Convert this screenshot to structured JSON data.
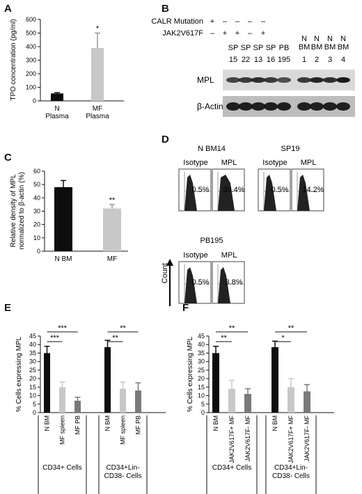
{
  "panels": {
    "A": "A",
    "B": "B",
    "C": "C",
    "D": "D",
    "E": "E",
    "F": "F"
  },
  "colors": {
    "black": "#0d0d0d",
    "light_gray": "#c8c8c8",
    "mid_gray": "#7a7a7a"
  },
  "chart_data": [
    {
      "id": "A",
      "type": "bar",
      "ylabel": "TPO concentration (pg/ml)",
      "ylim": [
        0,
        600
      ],
      "yticks": [
        "0",
        "100",
        "200",
        "300",
        "400",
        "500",
        "600"
      ],
      "categories": [
        "N\nPlasma",
        "MF\nPlasma"
      ],
      "category_lines": [
        [
          "N",
          "Plasma"
        ],
        [
          "MF",
          "Plasma"
        ]
      ],
      "values": [
        55,
        390
      ],
      "errors": [
        6,
        110
      ],
      "sig": [
        "",
        "*"
      ]
    },
    {
      "id": "C",
      "type": "bar",
      "ylabel_lines": [
        "Relative density of MPL",
        "normalized to β-actin (%)"
      ],
      "ylim": [
        0,
        60
      ],
      "yticks": [
        "0",
        "10",
        "20",
        "30",
        "40",
        "50",
        "60"
      ],
      "categories": [
        "N BM",
        "MF"
      ],
      "values": [
        48,
        32
      ],
      "errors": [
        5,
        3
      ],
      "sig": [
        "",
        "**"
      ]
    },
    {
      "id": "E",
      "type": "bar",
      "ylabel": "% Cells expressing MPL",
      "ylim": [
        0,
        45
      ],
      "yticks": [
        "0",
        "5",
        "10",
        "15",
        "20",
        "25",
        "30",
        "35",
        "40",
        "45"
      ],
      "groups": [
        {
          "label_lines": [
            "CD34+ Cells"
          ],
          "categories": [
            "N BM",
            "MF spleen",
            "MF PB"
          ],
          "values": [
            35,
            15,
            7
          ],
          "errors": [
            4,
            3,
            2
          ]
        },
        {
          "label_lines": [
            "CD34+Lin-",
            "CD38- Cells"
          ],
          "categories": [
            "N BM",
            "MF spleen",
            "MF PB"
          ],
          "values": [
            38.5,
            14,
            13
          ],
          "errors": [
            4,
            4,
            4.5
          ]
        }
      ],
      "sig_brackets": [
        {
          "group": 0,
          "from": 0,
          "to": 2,
          "label": "***"
        },
        {
          "group": 0,
          "from": 0,
          "to": 1,
          "label": "***"
        },
        {
          "group": 1,
          "from": 0,
          "to": 2,
          "label": "**"
        },
        {
          "group": 1,
          "from": 0,
          "to": 1,
          "label": "**"
        }
      ]
    },
    {
      "id": "F",
      "type": "bar",
      "ylabel": "% Cells expressing MPL",
      "ylim": [
        0,
        45
      ],
      "yticks": [
        "0",
        "5",
        "10",
        "15",
        "20",
        "25",
        "30",
        "35",
        "40",
        "45"
      ],
      "groups": [
        {
          "label_lines": [
            "CD34+ Cells"
          ],
          "categories": [
            "N BM",
            "JAK2V617F+ MF",
            "JAK2V617F- MF"
          ],
          "values": [
            35,
            14,
            11
          ],
          "errors": [
            4,
            5,
            3
          ]
        },
        {
          "label_lines": [
            "CD34+Lin-",
            "CD38- Cells"
          ],
          "categories": [
            "N BM",
            "JAK2V617F+ MF",
            "JAK2V617F- MF"
          ],
          "values": [
            38.5,
            15,
            12.5
          ],
          "errors": [
            3.5,
            5,
            4
          ]
        }
      ],
      "sig_brackets": [
        {
          "group": 0,
          "from": 0,
          "to": 2,
          "label": "**"
        },
        {
          "group": 0,
          "from": 0,
          "to": 1,
          "label": "**"
        },
        {
          "group": 1,
          "from": 0,
          "to": 2,
          "label": "**"
        },
        {
          "group": 1,
          "from": 0,
          "to": 1,
          "label": "*"
        }
      ]
    }
  ],
  "blot": {
    "calr_label": "CALR Mutation",
    "jak_label": "JAK2V617F",
    "calr_marks": [
      "+",
      "–",
      "–",
      "–",
      "–"
    ],
    "jak_marks": [
      "–",
      "+",
      "+",
      "–",
      "+"
    ],
    "lane_tissue": [
      "SP",
      "SP",
      "SP",
      "SP",
      "PB",
      "N\nBM",
      "N\nBM",
      "N\nBM",
      "N\nBM"
    ],
    "lane_tissue_lines": [
      [
        "SP"
      ],
      [
        "SP"
      ],
      [
        "SP"
      ],
      [
        "SP"
      ],
      [
        "PB"
      ],
      [
        "N",
        "BM"
      ],
      [
        "N",
        "BM"
      ],
      [
        "N",
        "BM"
      ],
      [
        "N",
        "BM"
      ]
    ],
    "lane_ids": [
      "15",
      "22",
      "13",
      "16",
      "195",
      "1",
      "2",
      "3",
      "4"
    ],
    "band_labels": [
      "MPL",
      "β-Actin"
    ]
  },
  "flow": {
    "groups": [
      {
        "title": "N BM14",
        "isotype_label": "Isotype",
        "mpl_label": "MPL",
        "isotype_pct": "0.5%",
        "mpl_pct": "39.4%"
      },
      {
        "title": "SP19",
        "isotype_label": "Isotype",
        "mpl_label": "MPL",
        "isotype_pct": "0.5%",
        "mpl_pct": "14.2%"
      },
      {
        "title": "PB195",
        "isotype_label": "Isotype",
        "mpl_label": "MPL",
        "isotype_pct": "0.5%",
        "mpl_pct": "3.8%"
      }
    ],
    "count_label": "Count"
  }
}
